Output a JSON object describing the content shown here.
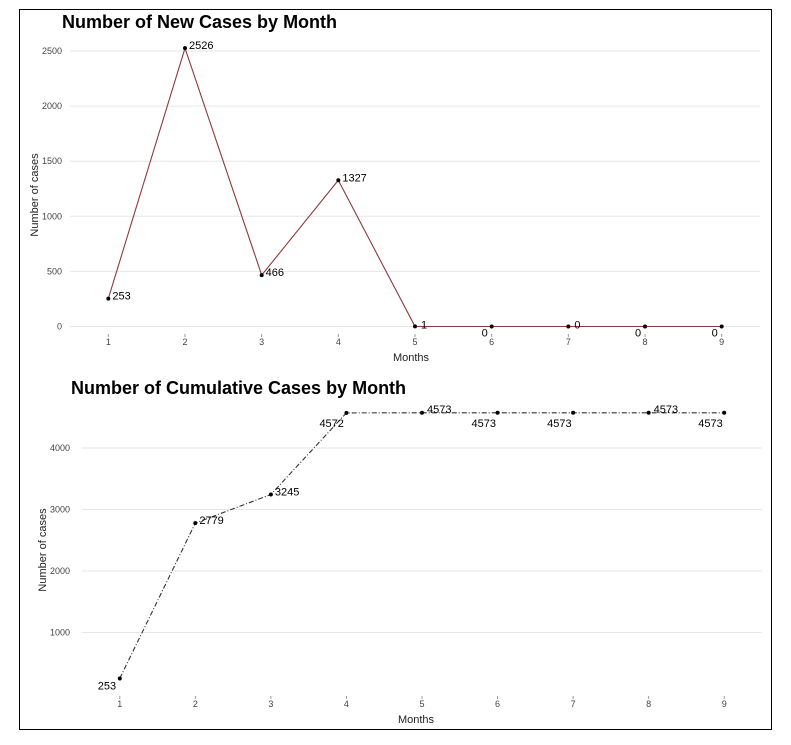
{
  "chart_data": [
    {
      "type": "line",
      "title": "Number of New Cases by Month",
      "xlabel": "Months",
      "ylabel": "Number of cases",
      "x": [
        1,
        2,
        3,
        4,
        5,
        6,
        7,
        8,
        9
      ],
      "values": [
        253,
        2526,
        466,
        1327,
        1,
        0,
        0,
        0,
        0
      ],
      "data_labels": [
        "253",
        "2526",
        "466",
        "1327",
        "1",
        "0",
        "0",
        "0",
        "0"
      ],
      "yticks": [
        0,
        500,
        1000,
        1500,
        2000,
        2500
      ],
      "ytick_labels": [
        "0",
        "500",
        "1000",
        "1500",
        "2000",
        "2500"
      ],
      "xtick_labels": [
        "1",
        "2",
        "3",
        "4",
        "5",
        "6",
        "7",
        "8",
        "9"
      ],
      "ylim": [
        -50,
        2600
      ],
      "xlim": [
        0.5,
        9.5
      ],
      "line_color": "#8b3a3a",
      "line_style": "solid",
      "grid": "horizontal"
    },
    {
      "type": "line",
      "title": "Number of Cumulative Cases by Month",
      "xlabel": "Months",
      "ylabel": "Number of cases",
      "x": [
        1,
        2,
        3,
        4,
        5,
        6,
        7,
        8,
        9
      ],
      "values": [
        253,
        2779,
        3245,
        4572,
        4573,
        4573,
        4573,
        4573,
        4573
      ],
      "data_labels": [
        "253",
        "2779",
        "3245",
        "4572",
        "4573",
        "4573",
        "4573",
        "4573",
        "4573"
      ],
      "yticks": [
        1000,
        2000,
        3000,
        4000
      ],
      "ytick_labels": [
        "1000",
        "2000",
        "3000",
        "4000"
      ],
      "xtick_labels": [
        "1",
        "2",
        "3",
        "4",
        "5",
        "6",
        "7",
        "8",
        "9"
      ],
      "ylim": [
        0,
        4700
      ],
      "xlim": [
        0.5,
        9.5
      ],
      "line_color": "#333333",
      "line_style": "dashdot",
      "grid": "horizontal"
    }
  ]
}
